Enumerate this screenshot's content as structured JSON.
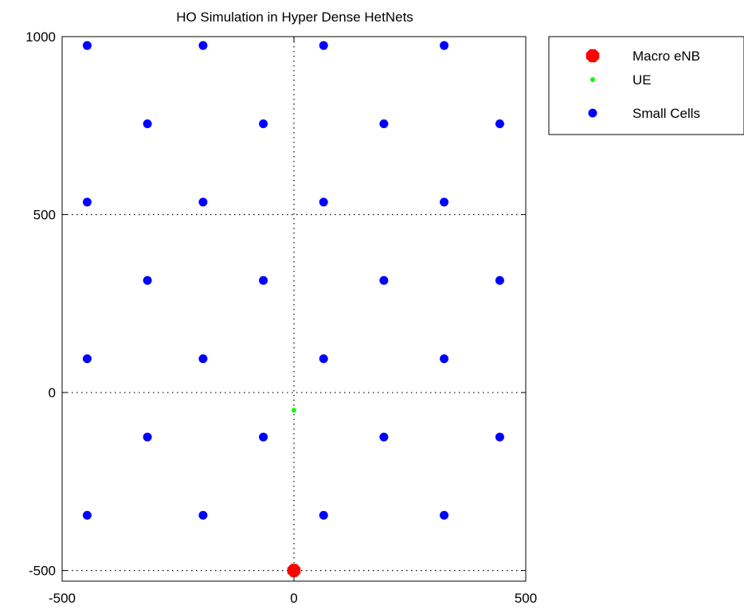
{
  "chart_data": {
    "type": "scatter",
    "title": "HO Simulation in Hyper Dense HetNets",
    "xlabel": "",
    "ylabel": "",
    "xlim": [
      -500,
      500
    ],
    "ylim": [
      -530,
      1000
    ],
    "xticks": [
      -500,
      0,
      500
    ],
    "xtick_labels": [
      "-500",
      "0",
      "500"
    ],
    "yticks": [
      -500,
      0,
      500,
      1000
    ],
    "ytick_labels": [
      "-500",
      "0",
      "500",
      "1000"
    ],
    "grid": "dotted, at x=0 and y=-500, 0, 500",
    "legend_position": "outside top-right",
    "series": [
      {
        "name": "Macro eNB",
        "color": "#ff0000",
        "marker": "large filled octagon",
        "points": [
          [
            0,
            -500
          ]
        ]
      },
      {
        "name": "UE",
        "color": "#00ff00",
        "marker": "small dot",
        "points": [
          [
            0,
            -50
          ]
        ]
      },
      {
        "name": "Small Cells",
        "color": "#0000ff",
        "marker": "filled dot",
        "points": [
          [
            -446,
            975
          ],
          [
            -196,
            975
          ],
          [
            64,
            975
          ],
          [
            324,
            975
          ],
          [
            -316,
            755
          ],
          [
            -66,
            755
          ],
          [
            194,
            755
          ],
          [
            444,
            755
          ],
          [
            -446,
            535
          ],
          [
            -196,
            535
          ],
          [
            64,
            535
          ],
          [
            324,
            535
          ],
          [
            -316,
            315
          ],
          [
            -66,
            315
          ],
          [
            194,
            315
          ],
          [
            444,
            315
          ],
          [
            -446,
            95
          ],
          [
            -196,
            95
          ],
          [
            64,
            95
          ],
          [
            324,
            95
          ],
          [
            -316,
            -125
          ],
          [
            -66,
            -125
          ],
          [
            194,
            -125
          ],
          [
            444,
            -125
          ],
          [
            -446,
            -345
          ],
          [
            -196,
            -345
          ],
          [
            64,
            -345
          ],
          [
            324,
            -345
          ]
        ]
      }
    ]
  }
}
